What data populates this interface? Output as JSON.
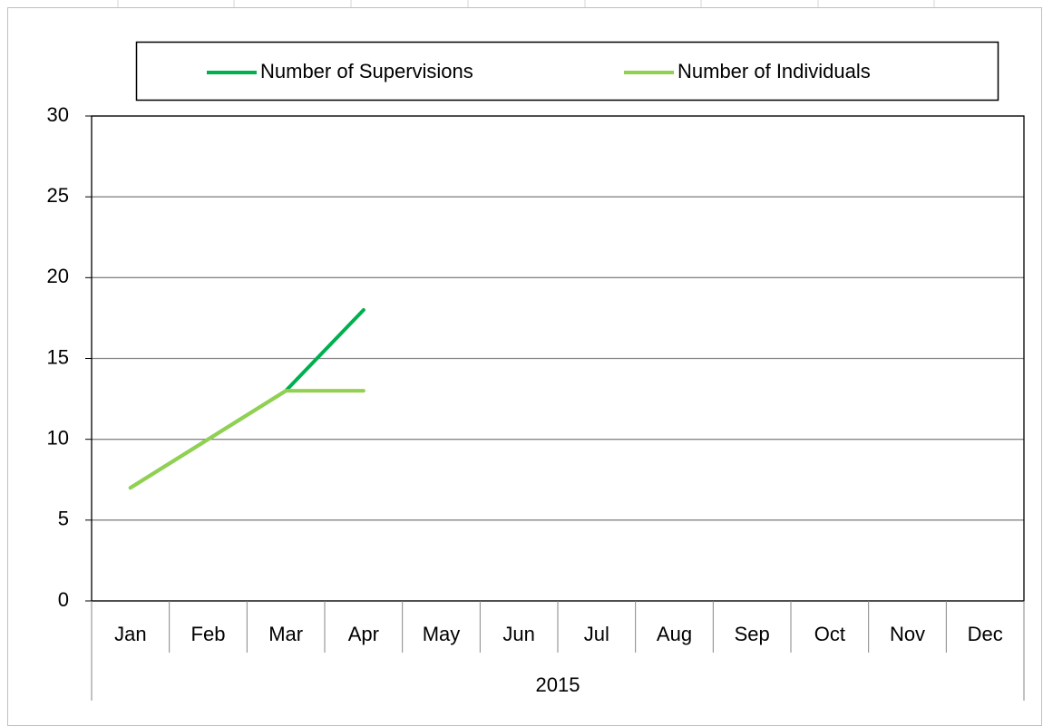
{
  "chart_data": {
    "type": "line",
    "categories": [
      "Jan",
      "Feb",
      "Mar",
      "Apr",
      "May",
      "Jun",
      "Jul",
      "Aug",
      "Sep",
      "Oct",
      "Nov",
      "Dec"
    ],
    "category_group": "2015",
    "series": [
      {
        "name": "Number of Supervisions",
        "color": "#00b050",
        "values": [
          7,
          10,
          13,
          18,
          null,
          null,
          null,
          null,
          null,
          null,
          null,
          null
        ]
      },
      {
        "name": "Number of Individuals",
        "color": "#92d050",
        "values": [
          7,
          10,
          13,
          13,
          null,
          null,
          null,
          null,
          null,
          null,
          null,
          null
        ]
      }
    ],
    "ylim": [
      0,
      30
    ],
    "yticks": [
      0,
      5,
      10,
      15,
      20,
      25,
      30
    ],
    "grid": true,
    "legend": "top"
  }
}
